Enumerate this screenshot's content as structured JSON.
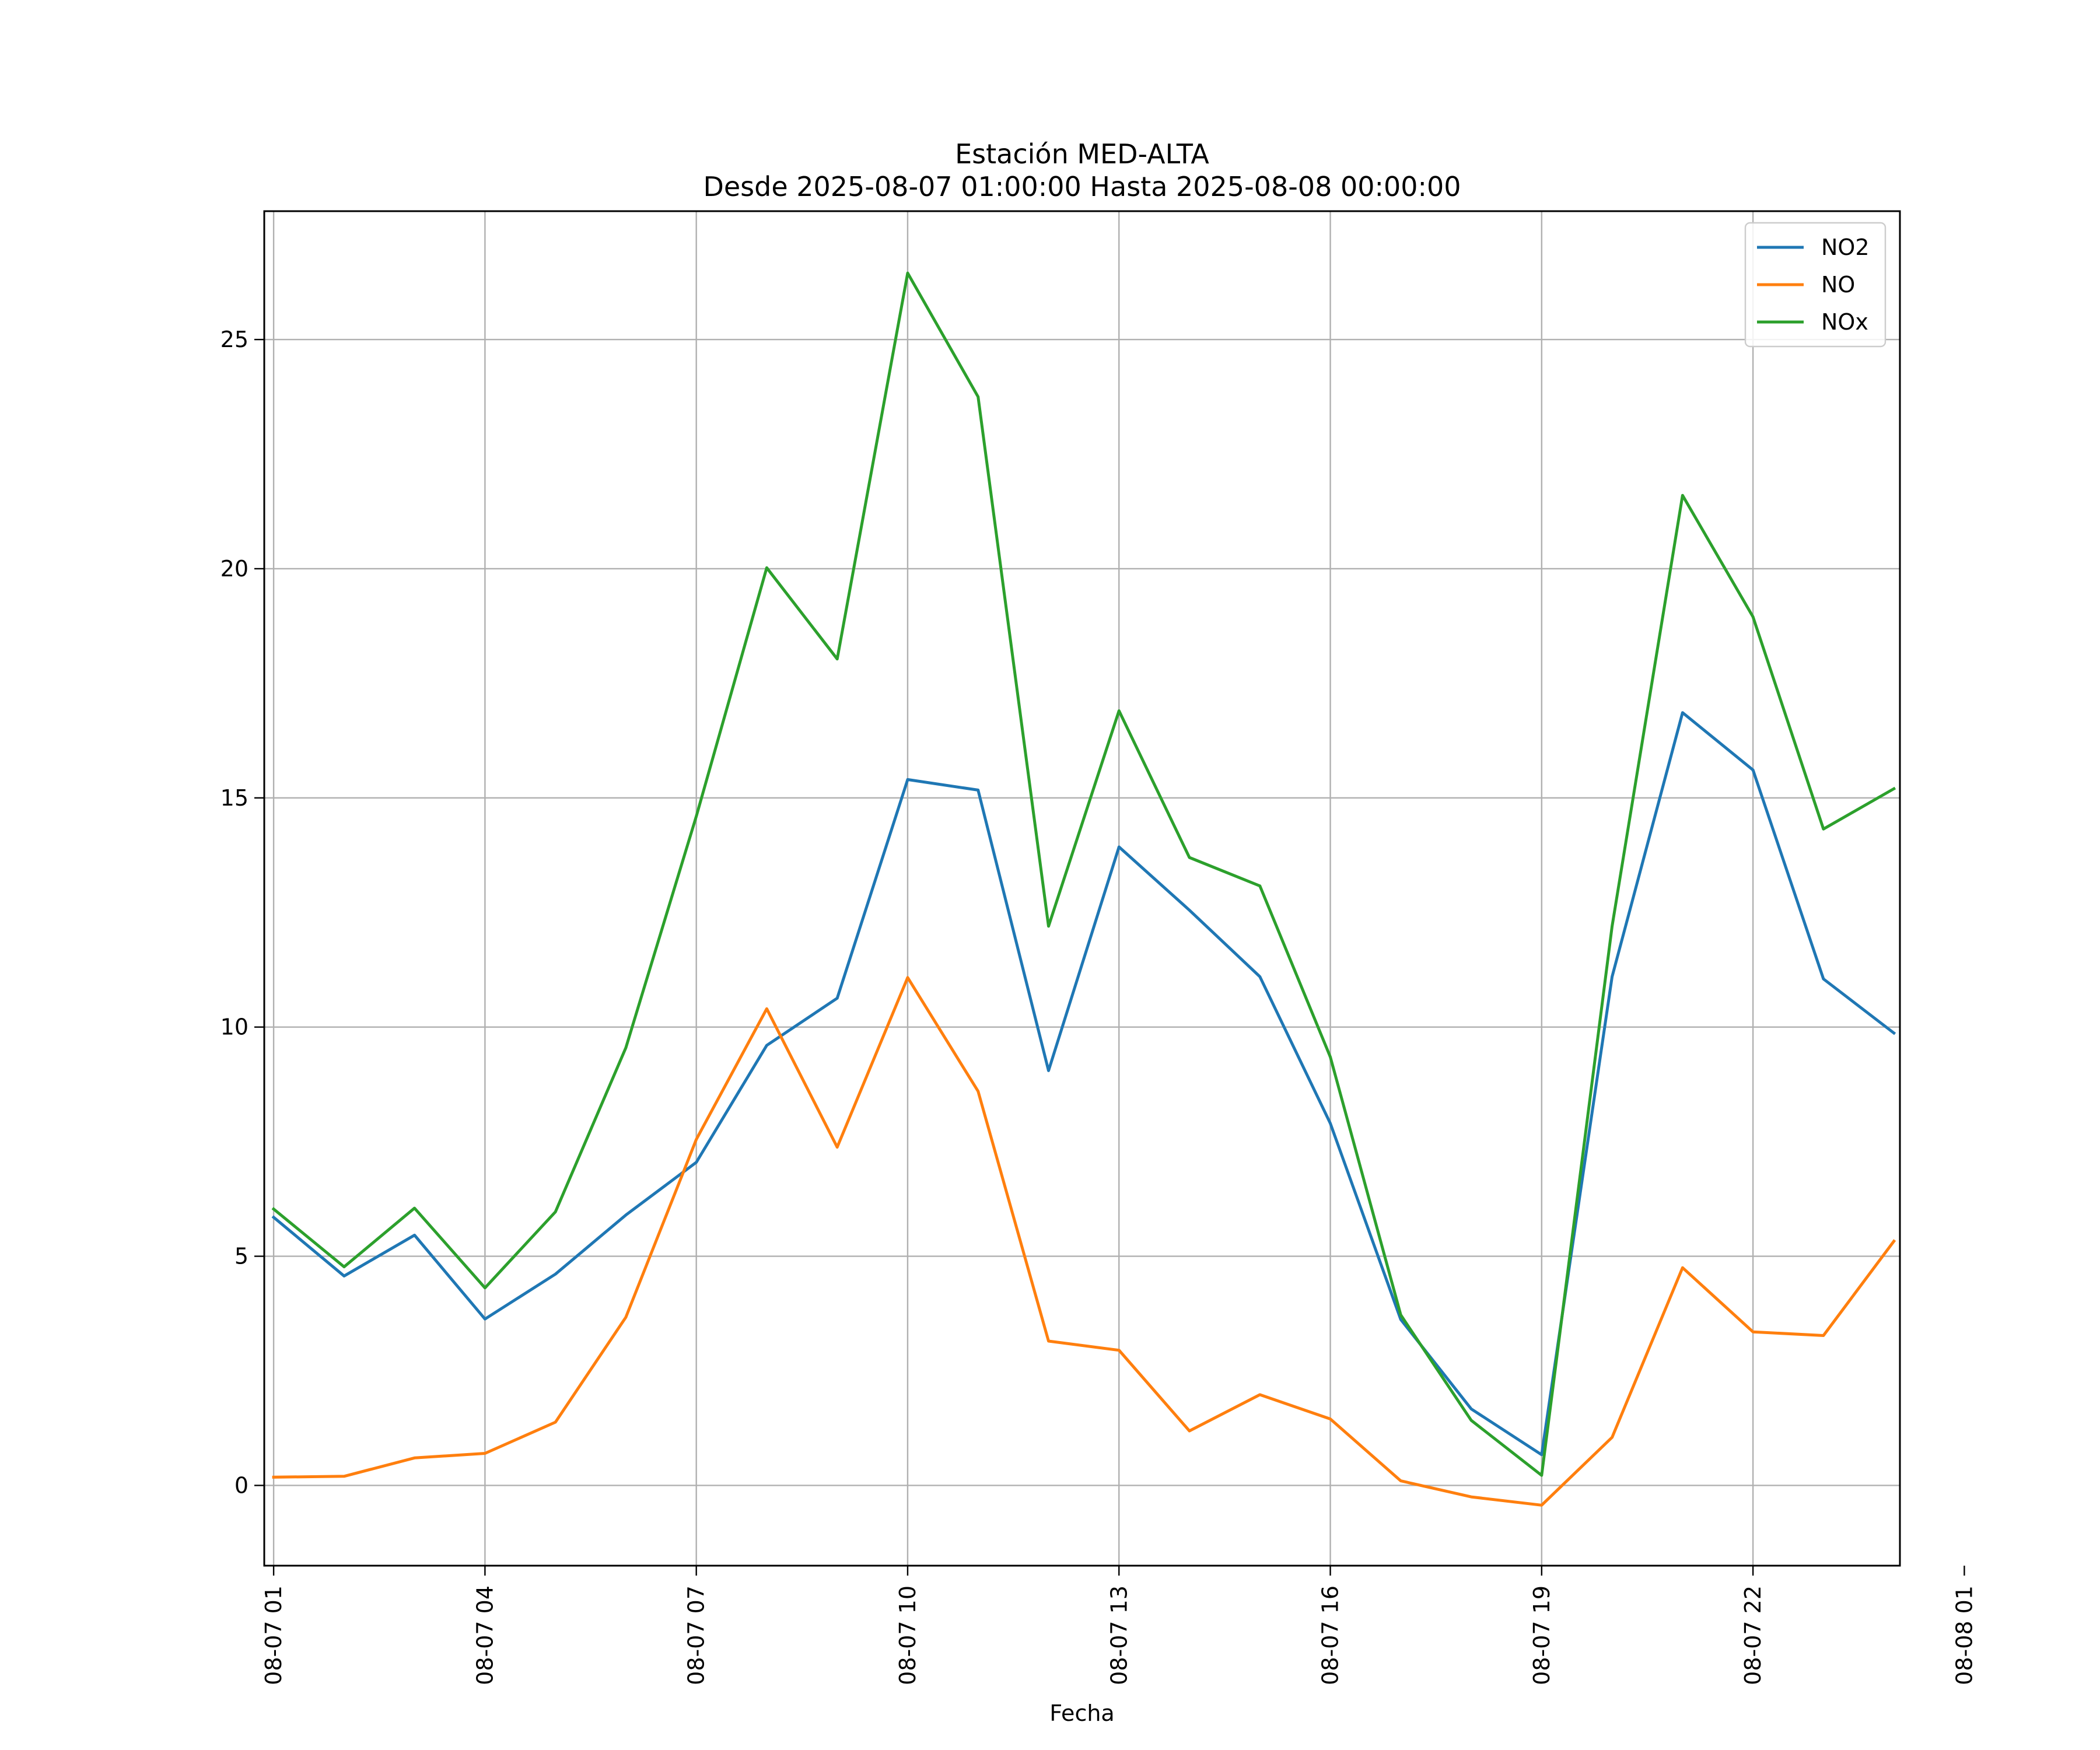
{
  "chart_data": {
    "type": "line",
    "title_line1": "Estación MED-ALTA",
    "title_line2": "Desde 2025-08-07 01:00:00 Hasta 2025-08-08 00:00:00",
    "xlabel": "Fecha",
    "ylabel": "",
    "xlim": [
      0.8667,
      24.0857
    ],
    "ylim": [
      -1.75,
      27.8
    ],
    "grid": true,
    "legend_position": "top-right",
    "x": [
      1,
      2,
      3,
      4,
      5,
      6,
      7,
      8,
      9,
      10,
      11,
      12,
      13,
      14,
      15,
      16,
      17,
      18,
      19,
      20,
      21,
      22,
      23,
      24
    ],
    "x_ticks": [
      {
        "x": 1,
        "label": "08-07 01"
      },
      {
        "x": 4,
        "label": "08-07 04"
      },
      {
        "x": 7,
        "label": "08-07 07"
      },
      {
        "x": 10,
        "label": "08-07 10"
      },
      {
        "x": 13,
        "label": "08-07 13"
      },
      {
        "x": 16,
        "label": "08-07 16"
      },
      {
        "x": 19,
        "label": "08-07 19"
      },
      {
        "x": 22,
        "label": "08-07 22"
      },
      {
        "x": 25,
        "label": "08-08 01"
      }
    ],
    "y_ticks": [
      {
        "y": 0,
        "label": "0"
      },
      {
        "y": 5,
        "label": "5"
      },
      {
        "y": 10,
        "label": "10"
      },
      {
        "y": 15,
        "label": "15"
      },
      {
        "y": 20,
        "label": "20"
      },
      {
        "y": 25,
        "label": "25"
      }
    ],
    "series": [
      {
        "name": "NO2",
        "color": "#1f77b4",
        "values": [
          5.85,
          4.57,
          5.46,
          3.63,
          4.61,
          5.9,
          7.05,
          9.6,
          10.63,
          15.4,
          15.17,
          9.05,
          13.93,
          12.55,
          11.1,
          7.9,
          3.62,
          1.67,
          0.67,
          11.1,
          16.86,
          15.61,
          11.05,
          9.87
        ]
      },
      {
        "name": "NO",
        "color": "#ff7f0e",
        "values": [
          0.18,
          0.2,
          0.6,
          0.7,
          1.38,
          3.67,
          7.55,
          10.4,
          7.38,
          11.08,
          8.6,
          3.15,
          2.95,
          1.19,
          1.98,
          1.45,
          0.1,
          -0.25,
          -0.43,
          1.05,
          4.75,
          3.35,
          3.27,
          5.33
        ]
      },
      {
        "name": "NOx",
        "color": "#2ca02c",
        "values": [
          6.03,
          4.77,
          6.05,
          4.31,
          5.97,
          9.55,
          14.6,
          20.02,
          18.03,
          26.45,
          23.75,
          12.2,
          16.9,
          13.7,
          13.08,
          9.35,
          3.72,
          1.42,
          0.22,
          12.2,
          21.6,
          18.95,
          14.32,
          15.2
        ]
      }
    ]
  }
}
